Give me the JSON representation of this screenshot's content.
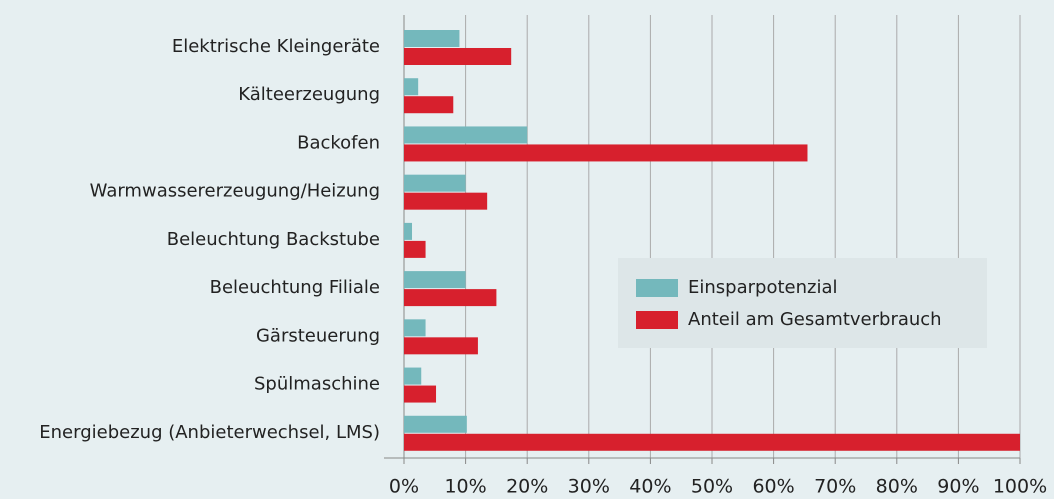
{
  "chart_data": {
    "type": "hbar",
    "categories": [
      "Elektrische Kleingeräte",
      "Kälteerzeugung",
      "Backofen",
      "Warmwassererzeugung/Heizung",
      "Beleuchtung Backstube",
      "Beleuchtung Filiale",
      "Gärsteuerung",
      "Spülmaschine",
      "Energiebezug (Anbieterwechsel, LMS)"
    ],
    "series": [
      {
        "name": "Einsparpotenzial",
        "color": "#74b8bc",
        "values": [
          9,
          2.3,
          20,
          10,
          1.3,
          10,
          3.5,
          2.8,
          10.2
        ]
      },
      {
        "name": "Anteil am Gesamtverbrauch",
        "color": "#d7202d",
        "values": [
          17.4,
          8,
          65.5,
          13.5,
          3.5,
          15,
          12,
          5.2,
          100
        ]
      }
    ],
    "xlim": [
      0,
      100
    ],
    "xticks": [
      {
        "value": 0,
        "label": "0%"
      },
      {
        "value": 10,
        "label": "10%"
      },
      {
        "value": 20,
        "label": "20%"
      },
      {
        "value": 30,
        "label": "30%"
      },
      {
        "value": 40,
        "label": "40%"
      },
      {
        "value": 50,
        "label": "50%"
      },
      {
        "value": 60,
        "label": "60%"
      },
      {
        "value": 70,
        "label": "70%"
      },
      {
        "value": 80,
        "label": "80%"
      },
      {
        "value": 90,
        "label": "90%"
      },
      {
        "value": 100,
        "label": "100%"
      }
    ],
    "grid": true,
    "legend": "center right"
  }
}
